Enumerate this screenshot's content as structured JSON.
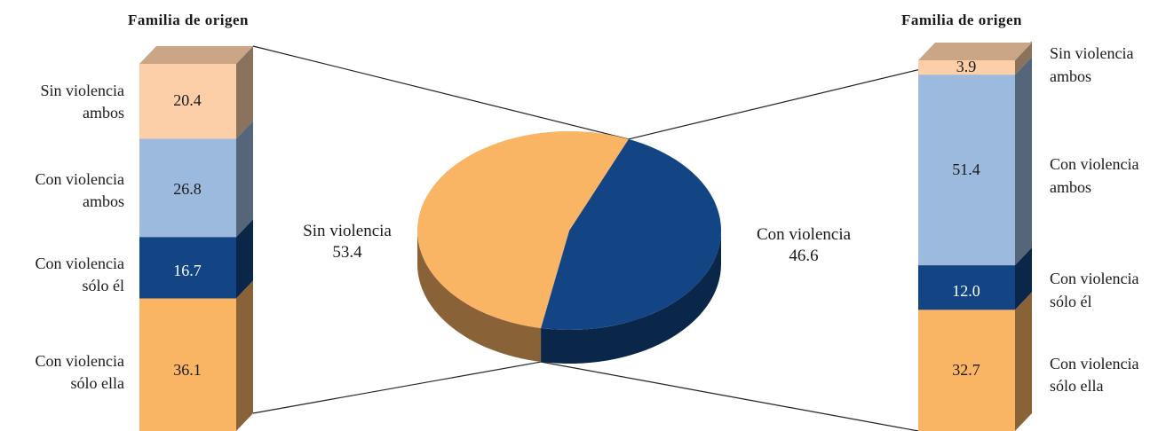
{
  "colors": {
    "sin_ambos": "#FCCFA8",
    "con_ambos": "#9CB9DE",
    "solo_el": "#134585",
    "solo_ella": "#F9B464",
    "pie_sin": "#F9B464",
    "pie_con": "#134585"
  },
  "chart_data": [
    {
      "type": "bar",
      "stacked": true,
      "title": "Familia de origen",
      "categories": [
        "Sin violencia ambos",
        "Con violencia ambos",
        "Con violencia sólo él",
        "Con violencia sólo ella"
      ],
      "labels": [
        {
          "line1": "Sin violencia",
          "line2": "ambos"
        },
        {
          "line1": "Con violencia",
          "line2": "ambos"
        },
        {
          "line1": "Con violencia",
          "line2": "sólo él"
        },
        {
          "line1": "Con violencia",
          "line2": "sólo ella"
        }
      ],
      "values": [
        "20.4",
        "26.8",
        "16.7",
        "36.1"
      ]
    },
    {
      "type": "pie",
      "categories": [
        "Sin violencia",
        "Con violencia"
      ],
      "values": [
        "53.4",
        "46.6"
      ]
    },
    {
      "type": "bar",
      "stacked": true,
      "title": "Familia de origen",
      "categories": [
        "Sin violencia ambos",
        "Con violencia ambos",
        "Con violencia sólo él",
        "Con violencia sólo ella"
      ],
      "labels": [
        {
          "line1": "Sin violencia",
          "line2": "ambos"
        },
        {
          "line1": "Con violencia",
          "line2": "ambos"
        },
        {
          "line1": "Con violencia",
          "line2": "sólo él"
        },
        {
          "line1": "Con violencia",
          "line2": "sólo ella"
        }
      ],
      "values": [
        "3.9",
        "51.4",
        "12.0",
        "32.7"
      ]
    }
  ]
}
